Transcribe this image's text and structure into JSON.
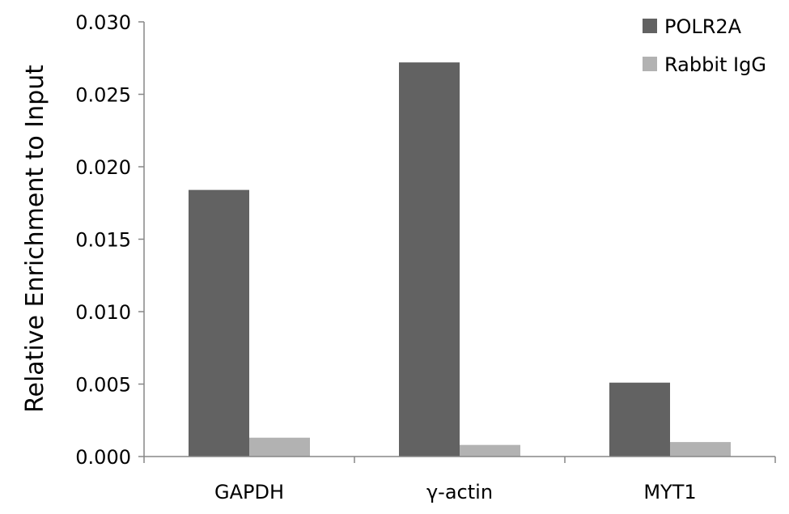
{
  "chart_data": {
    "type": "bar",
    "title": "",
    "xlabel": "",
    "ylabel": "Relative Enrichment to Input",
    "ylim": [
      0,
      0.03
    ],
    "yticks": [
      "0.000",
      "0.005",
      "0.010",
      "0.015",
      "0.020",
      "0.025",
      "0.030"
    ],
    "categories": [
      "GAPDH",
      "γ-actin",
      "MYT1"
    ],
    "series": [
      {
        "name": "POLR2A",
        "values": [
          0.0184,
          0.0272,
          0.0051
        ],
        "color": "#626262"
      },
      {
        "name": "Rabbit IgG",
        "values": [
          0.0013,
          0.0008,
          0.001
        ],
        "color": "#b2b2b2"
      }
    ],
    "legend": {
      "position": "top-right"
    },
    "grid": false
  }
}
